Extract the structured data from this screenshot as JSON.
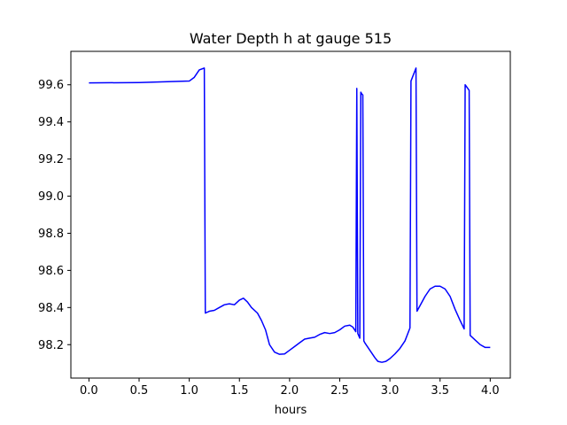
{
  "chart_data": {
    "type": "line",
    "title": "Water Depth h at gauge 515",
    "xlabel": "hours",
    "ylabel": "",
    "xlim": [
      -0.18,
      4.2
    ],
    "ylim": [
      98.02,
      99.78
    ],
    "xticks": [
      0.0,
      0.5,
      1.0,
      1.5,
      2.0,
      2.5,
      3.0,
      3.5,
      4.0
    ],
    "xtick_labels": [
      "0.0",
      "0.5",
      "1.0",
      "1.5",
      "2.0",
      "2.5",
      "3.0",
      "3.5",
      "4.0"
    ],
    "yticks": [
      98.2,
      98.4,
      98.6,
      98.8,
      99.0,
      99.2,
      99.4,
      99.6
    ],
    "ytick_labels": [
      "98.2",
      "98.4",
      "98.6",
      "98.8",
      "99.0",
      "99.2",
      "99.4",
      "99.6"
    ],
    "grid": false,
    "series": [
      {
        "color": "#0000ff",
        "x": [
          0.0,
          0.5,
          1.0,
          1.05,
          1.1,
          1.15,
          1.16,
          1.2,
          1.25,
          1.3,
          1.35,
          1.4,
          1.45,
          1.5,
          1.54,
          1.58,
          1.62,
          1.68,
          1.72,
          1.76,
          1.8,
          1.85,
          1.9,
          1.95,
          2.0,
          2.05,
          2.1,
          2.15,
          2.2,
          2.25,
          2.3,
          2.35,
          2.4,
          2.45,
          2.5,
          2.55,
          2.6,
          2.63,
          2.66,
          2.67,
          2.68,
          2.7,
          2.71,
          2.72,
          2.73,
          2.74,
          2.75,
          2.8,
          2.85,
          2.88,
          2.92,
          2.96,
          3.0,
          3.05,
          3.1,
          3.15,
          3.2,
          3.21,
          3.26,
          3.27,
          3.3,
          3.35,
          3.4,
          3.45,
          3.5,
          3.55,
          3.6,
          3.65,
          3.7,
          3.74,
          3.75,
          3.79,
          3.8,
          3.85,
          3.9,
          3.95,
          4.0
        ],
        "y": [
          99.61,
          99.612,
          99.62,
          99.64,
          99.68,
          99.69,
          98.37,
          98.38,
          98.385,
          98.4,
          98.415,
          98.42,
          98.415,
          98.44,
          98.45,
          98.43,
          98.4,
          98.37,
          98.33,
          98.28,
          98.2,
          98.16,
          98.148,
          98.15,
          98.17,
          98.19,
          98.21,
          98.23,
          98.235,
          98.24,
          98.255,
          98.265,
          98.26,
          98.265,
          98.28,
          98.3,
          98.305,
          98.295,
          98.27,
          99.58,
          98.26,
          98.235,
          99.56,
          99.55,
          99.545,
          98.22,
          98.21,
          98.17,
          98.13,
          98.11,
          98.105,
          98.11,
          98.125,
          98.15,
          98.18,
          98.22,
          98.29,
          99.62,
          99.69,
          98.38,
          98.41,
          98.46,
          98.5,
          98.515,
          98.515,
          98.5,
          98.46,
          98.39,
          98.33,
          98.285,
          99.6,
          99.57,
          98.25,
          98.225,
          98.2,
          98.185,
          98.185
        ]
      }
    ]
  }
}
